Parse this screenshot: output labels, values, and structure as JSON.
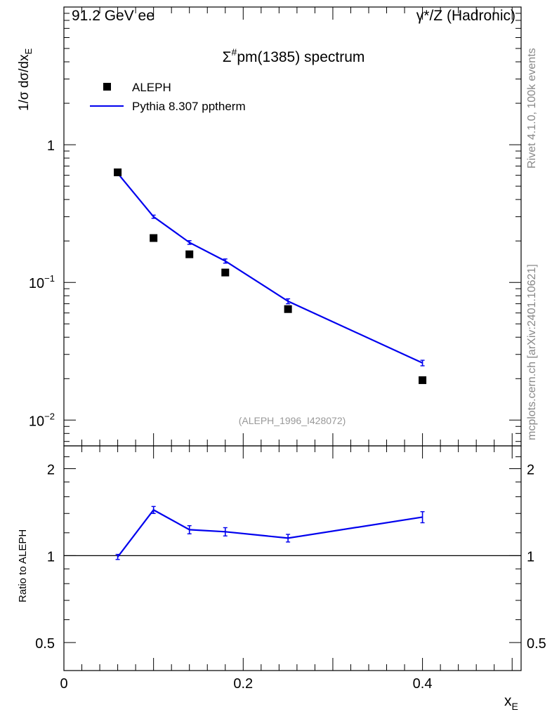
{
  "header": {
    "left": "91.2 GeV ee",
    "right": "γ*/Z (Hadronic)"
  },
  "side_labels": {
    "rivet": "Rivet 4.1.0,  100k events",
    "mcplots": "mcplots.cern.ch [arXiv:2401.10621]"
  },
  "colors": {
    "data": "#000000",
    "mc": "#0000ee",
    "watermark": "#999999",
    "side_text": "#888888"
  },
  "chart_data": [
    {
      "type": "scatter",
      "panel": "main",
      "title_prefix": "Σ",
      "title_sup": "#",
      "title_suffix": "pm(1385) spectrum",
      "ylabel_lead": "1/σ  dσ/dx",
      "ylabel_sub": "E",
      "yscale": "log",
      "ylim": [
        0.0065,
        10
      ],
      "xlim": [
        0,
        0.51
      ],
      "ytick_labels": [
        {
          "value": 1,
          "base": "1",
          "exp": ""
        },
        {
          "value": 0.1,
          "base": "10",
          "exp": "−1"
        },
        {
          "value": 0.01,
          "base": "10",
          "exp": "−2"
        }
      ],
      "annotation": "(ALEPH_1996_I428072)",
      "legend_position": "top-left",
      "series": [
        {
          "name": "ALEPH",
          "style": "markers",
          "x": [
            0.06,
            0.1,
            0.14,
            0.18,
            0.25,
            0.4
          ],
          "y": [
            0.63,
            0.21,
            0.16,
            0.118,
            0.064,
            0.0195
          ]
        },
        {
          "name": "Pythia 8.307 pptherm",
          "style": "line",
          "x": [
            0.06,
            0.1,
            0.14,
            0.18,
            0.25,
            0.4
          ],
          "y": [
            0.62,
            0.3,
            0.195,
            0.143,
            0.073,
            0.026
          ],
          "yerr": [
            0.01,
            0.008,
            0.006,
            0.005,
            0.003,
            0.0012
          ]
        }
      ]
    },
    {
      "type": "line",
      "panel": "ratio",
      "ylabel": "Ratio to ALEPH",
      "xlabel_lead": "x",
      "xlabel_sub": "E",
      "xlim": [
        0,
        0.51
      ],
      "ylim": [
        0.4,
        2.4
      ],
      "yscale": "log",
      "reference_line": 1,
      "ytick_labels": [
        {
          "value": 2,
          "label": "2"
        },
        {
          "value": 1,
          "label": "1"
        },
        {
          "value": 0.5,
          "label": "0.5"
        }
      ],
      "xtick_labels": [
        {
          "value": 0,
          "label": "0"
        },
        {
          "value": 0.2,
          "label": "0.2"
        },
        {
          "value": 0.4,
          "label": "0.4"
        }
      ],
      "series": [
        {
          "name": "Pythia 8.307 pptherm / ALEPH",
          "x": [
            0.06,
            0.1,
            0.14,
            0.18,
            0.25,
            0.4
          ],
          "y": [
            0.99,
            1.44,
            1.23,
            1.21,
            1.15,
            1.36
          ],
          "yerr": [
            0.02,
            0.04,
            0.04,
            0.04,
            0.035,
            0.06
          ]
        }
      ]
    }
  ]
}
